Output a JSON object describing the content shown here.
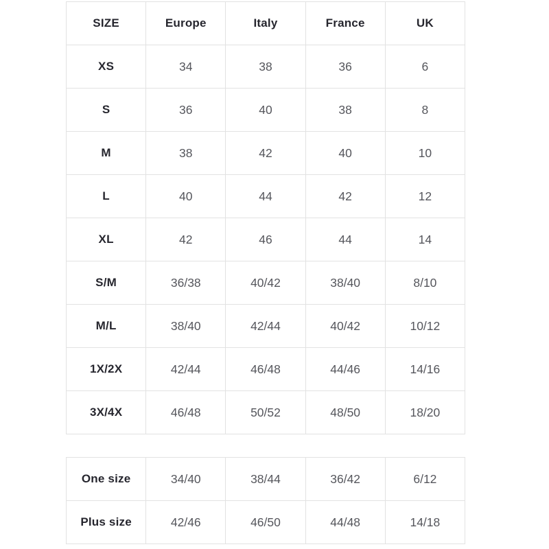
{
  "colors": {
    "background": "#ffffff",
    "border": "#e2e2e2",
    "header_text": "#26262e",
    "value_text": "#55565c"
  },
  "size_table": {
    "headers": [
      "SIZE",
      "Europe",
      "Italy",
      "France",
      "UK"
    ],
    "rows": [
      {
        "size": "XS",
        "europe": "34",
        "italy": "38",
        "france": "36",
        "uk": "6"
      },
      {
        "size": "S",
        "europe": "36",
        "italy": "40",
        "france": "38",
        "uk": "8"
      },
      {
        "size": "M",
        "europe": "38",
        "italy": "42",
        "france": "40",
        "uk": "10"
      },
      {
        "size": "L",
        "europe": "40",
        "italy": "44",
        "france": "42",
        "uk": "12"
      },
      {
        "size": "XL",
        "europe": "42",
        "italy": "46",
        "france": "44",
        "uk": "14"
      },
      {
        "size": "S/M",
        "europe": "36/38",
        "italy": "40/42",
        "france": "38/40",
        "uk": "8/10"
      },
      {
        "size": "M/L",
        "europe": "38/40",
        "italy": "42/44",
        "france": "40/42",
        "uk": "10/12"
      },
      {
        "size": "1X/2X",
        "europe": "42/44",
        "italy": "46/48",
        "france": "44/46",
        "uk": "14/16"
      },
      {
        "size": "3X/4X",
        "europe": "46/48",
        "italy": "50/52",
        "france": "48/50",
        "uk": "18/20"
      }
    ]
  },
  "special_sizes_table": {
    "rows": [
      {
        "size": "One size",
        "europe": "34/40",
        "italy": "38/44",
        "france": "36/42",
        "uk": "6/12"
      },
      {
        "size": "Plus size",
        "europe": "42/46",
        "italy": "46/50",
        "france": "44/48",
        "uk": "14/18"
      }
    ]
  }
}
